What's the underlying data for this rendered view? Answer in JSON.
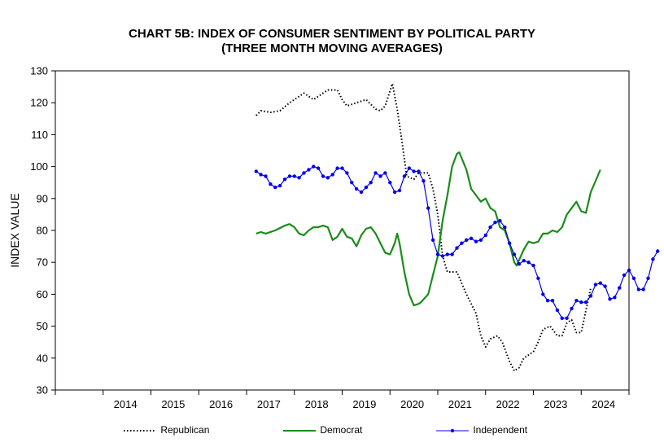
{
  "chart_data": {
    "type": "line",
    "title": "CHART 5B: INDEX OF CONSUMER SENTIMENT BY POLITICAL PARTY",
    "subtitle": "(THREE MONTH MOVING AVERAGES)",
    "xlabel": "",
    "ylabel": "INDEX VALUE",
    "ylim": [
      30,
      130
    ],
    "xlim": [
      2013.0,
      2025.0
    ],
    "yticks": [
      30,
      40,
      50,
      60,
      70,
      80,
      90,
      100,
      110,
      120,
      130
    ],
    "xticks": [
      2014,
      2015,
      2016,
      2017,
      2018,
      2019,
      2020,
      2021,
      2022,
      2023,
      2024
    ],
    "x_tick_labels": [
      "2014",
      "2015",
      "2016",
      "2017",
      "2018",
      "2019",
      "2020",
      "2021",
      "2022",
      "2023",
      "2024"
    ],
    "grid": false,
    "legend_position": "bottom",
    "series": [
      {
        "name": "Republican",
        "style": "dotted",
        "color": "#000000",
        "points": [
          [
            2017.2,
            116
          ],
          [
            2017.3,
            117.5
          ],
          [
            2017.5,
            117
          ],
          [
            2017.7,
            117.5
          ],
          [
            2017.9,
            120
          ],
          [
            2018.0,
            121
          ],
          [
            2018.2,
            123
          ],
          [
            2018.4,
            121
          ],
          [
            2018.5,
            122
          ],
          [
            2018.7,
            124
          ],
          [
            2018.9,
            124
          ],
          [
            2019.0,
            121
          ],
          [
            2019.1,
            119
          ],
          [
            2019.3,
            120
          ],
          [
            2019.5,
            121
          ],
          [
            2019.7,
            118
          ],
          [
            2019.8,
            117.5
          ],
          [
            2019.9,
            119
          ],
          [
            2020.05,
            126
          ],
          [
            2020.15,
            118
          ],
          [
            2020.25,
            108
          ],
          [
            2020.35,
            97
          ],
          [
            2020.5,
            96
          ],
          [
            2020.6,
            98
          ],
          [
            2020.8,
            98
          ],
          [
            2020.9,
            93
          ],
          [
            2021.0,
            85
          ],
          [
            2021.1,
            72
          ],
          [
            2021.2,
            67
          ],
          [
            2021.4,
            67
          ],
          [
            2021.6,
            60
          ],
          [
            2021.8,
            54
          ],
          [
            2021.9,
            47
          ],
          [
            2022.0,
            43.5
          ],
          [
            2022.1,
            46
          ],
          [
            2022.25,
            47
          ],
          [
            2022.35,
            45
          ],
          [
            2022.5,
            39
          ],
          [
            2022.6,
            36
          ],
          [
            2022.7,
            37
          ],
          [
            2022.8,
            40
          ],
          [
            2022.9,
            41
          ],
          [
            2023.0,
            42
          ],
          [
            2023.1,
            45
          ],
          [
            2023.2,
            49
          ],
          [
            2023.35,
            50
          ],
          [
            2023.5,
            47
          ],
          [
            2023.6,
            47
          ],
          [
            2023.7,
            51
          ],
          [
            2023.8,
            52
          ],
          [
            2023.9,
            48
          ],
          [
            2024.0,
            48
          ],
          [
            2024.1,
            55
          ],
          [
            2024.2,
            62
          ]
        ]
      },
      {
        "name": "Democrat",
        "style": "solid",
        "color": "#1a8c1a",
        "points": [
          [
            2017.2,
            79
          ],
          [
            2017.3,
            79.5
          ],
          [
            2017.4,
            79
          ],
          [
            2017.6,
            80
          ],
          [
            2017.8,
            81.5
          ],
          [
            2017.9,
            82
          ],
          [
            2018.0,
            81
          ],
          [
            2018.1,
            79
          ],
          [
            2018.2,
            78.5
          ],
          [
            2018.3,
            80
          ],
          [
            2018.4,
            81
          ],
          [
            2018.5,
            81
          ],
          [
            2018.6,
            81.5
          ],
          [
            2018.7,
            81
          ],
          [
            2018.8,
            77
          ],
          [
            2018.9,
            78
          ],
          [
            2019.0,
            80.5
          ],
          [
            2019.1,
            78
          ],
          [
            2019.2,
            77.5
          ],
          [
            2019.3,
            75
          ],
          [
            2019.4,
            78.5
          ],
          [
            2019.5,
            80.5
          ],
          [
            2019.6,
            81
          ],
          [
            2019.7,
            79
          ],
          [
            2019.8,
            76
          ],
          [
            2019.9,
            73
          ],
          [
            2020.0,
            72.5
          ],
          [
            2020.1,
            76
          ],
          [
            2020.15,
            79
          ],
          [
            2020.2,
            76
          ],
          [
            2020.3,
            67
          ],
          [
            2020.4,
            60
          ],
          [
            2020.5,
            56.5
          ],
          [
            2020.6,
            57
          ],
          [
            2020.65,
            57.5
          ],
          [
            2020.8,
            60
          ],
          [
            2020.9,
            66
          ],
          [
            2021.0,
            72
          ],
          [
            2021.1,
            83
          ],
          [
            2021.2,
            91
          ],
          [
            2021.3,
            100
          ],
          [
            2021.4,
            104
          ],
          [
            2021.45,
            104.5
          ],
          [
            2021.6,
            99
          ],
          [
            2021.7,
            93
          ],
          [
            2021.8,
            91
          ],
          [
            2021.9,
            89
          ],
          [
            2022.0,
            90
          ],
          [
            2022.1,
            87
          ],
          [
            2022.2,
            86
          ],
          [
            2022.3,
            81
          ],
          [
            2022.4,
            80
          ],
          [
            2022.5,
            76
          ],
          [
            2022.6,
            70
          ],
          [
            2022.65,
            69
          ],
          [
            2022.8,
            74
          ],
          [
            2022.9,
            76.5
          ],
          [
            2023.0,
            76
          ],
          [
            2023.1,
            76.5
          ],
          [
            2023.2,
            79
          ],
          [
            2023.3,
            79
          ],
          [
            2023.4,
            80
          ],
          [
            2023.5,
            79.5
          ],
          [
            2023.6,
            81
          ],
          [
            2023.7,
            85
          ],
          [
            2023.8,
            87
          ],
          [
            2023.9,
            89
          ],
          [
            2024.0,
            86
          ],
          [
            2024.1,
            85.5
          ],
          [
            2024.2,
            92
          ],
          [
            2024.4,
            99
          ]
        ]
      },
      {
        "name": "Independent",
        "style": "solid-markers",
        "color": "#0000ee",
        "points": [
          [
            2017.2,
            98.5
          ],
          [
            2017.3,
            97.5
          ],
          [
            2017.4,
            97
          ],
          [
            2017.5,
            94.5
          ],
          [
            2017.6,
            93.5
          ],
          [
            2017.7,
            94
          ],
          [
            2017.8,
            96
          ],
          [
            2017.9,
            97
          ],
          [
            2018.0,
            97
          ],
          [
            2018.1,
            96.5
          ],
          [
            2018.2,
            98
          ],
          [
            2018.3,
            99
          ],
          [
            2018.4,
            100
          ],
          [
            2018.5,
            99.5
          ],
          [
            2018.6,
            97
          ],
          [
            2018.7,
            96.5
          ],
          [
            2018.8,
            97.5
          ],
          [
            2018.9,
            99.5
          ],
          [
            2019.0,
            99.5
          ],
          [
            2019.1,
            98
          ],
          [
            2019.2,
            95
          ],
          [
            2019.3,
            93
          ],
          [
            2019.4,
            92
          ],
          [
            2019.5,
            93.5
          ],
          [
            2019.6,
            95
          ],
          [
            2019.7,
            98
          ],
          [
            2019.8,
            97
          ],
          [
            2019.9,
            98
          ],
          [
            2020.0,
            95
          ],
          [
            2020.1,
            92
          ],
          [
            2020.2,
            92.5
          ],
          [
            2020.3,
            97
          ],
          [
            2020.4,
            99.5
          ],
          [
            2020.5,
            98.5
          ],
          [
            2020.6,
            98.5
          ],
          [
            2020.7,
            95.5
          ],
          [
            2020.8,
            87
          ],
          [
            2020.9,
            77
          ],
          [
            2021.0,
            72.5
          ],
          [
            2021.1,
            72
          ],
          [
            2021.2,
            72.5
          ],
          [
            2021.3,
            72.5
          ],
          [
            2021.4,
            74.5
          ],
          [
            2021.5,
            76
          ],
          [
            2021.6,
            77
          ],
          [
            2021.7,
            77.5
          ],
          [
            2021.8,
            76.5
          ],
          [
            2021.9,
            77
          ],
          [
            2022.0,
            78.5
          ],
          [
            2022.1,
            81
          ],
          [
            2022.2,
            82.5
          ],
          [
            2022.3,
            83
          ],
          [
            2022.4,
            81
          ],
          [
            2022.5,
            76
          ],
          [
            2022.6,
            72.5
          ],
          [
            2022.7,
            69.5
          ],
          [
            2022.8,
            70.5
          ],
          [
            2022.9,
            70
          ],
          [
            2023.0,
            69
          ],
          [
            2023.1,
            65
          ],
          [
            2023.2,
            60
          ],
          [
            2023.3,
            58
          ],
          [
            2023.4,
            58
          ],
          [
            2023.5,
            55
          ],
          [
            2023.6,
            52.5
          ],
          [
            2023.7,
            52.5
          ],
          [
            2023.8,
            55.5
          ],
          [
            2023.9,
            58
          ],
          [
            2024.0,
            57.5
          ],
          [
            2024.1,
            57.5
          ],
          [
            2024.2,
            59.5
          ],
          [
            2024.3,
            63
          ],
          [
            2024.4,
            63.5
          ],
          [
            2024.5,
            62.5
          ],
          [
            2024.6,
            58.5
          ],
          [
            2024.7,
            59
          ],
          [
            2024.8,
            62
          ],
          [
            2024.9,
            66
          ],
          [
            2025.0,
            67.5
          ],
          [
            2025.1,
            65
          ],
          [
            2025.2,
            61.5
          ],
          [
            2025.3,
            61.5
          ],
          [
            2025.4,
            65
          ],
          [
            2025.5,
            71
          ],
          [
            2025.6,
            73.5
          ]
        ]
      }
    ]
  }
}
